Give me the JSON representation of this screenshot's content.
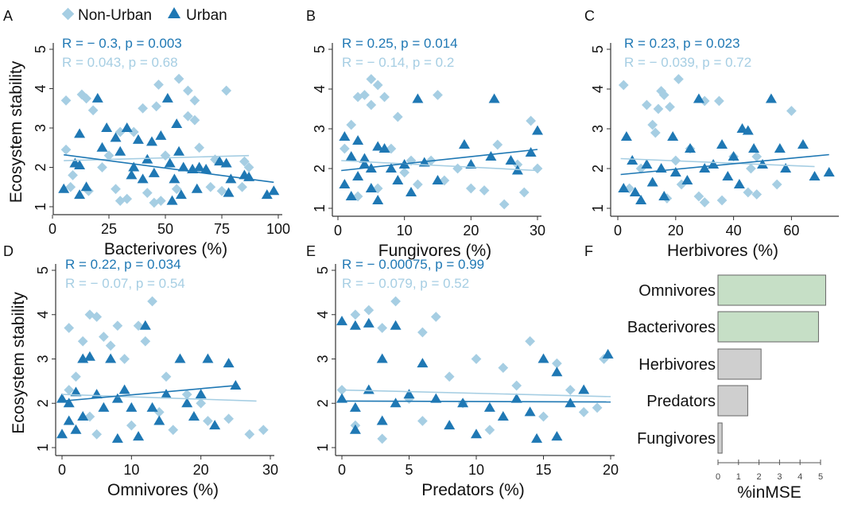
{
  "colors": {
    "urban": "#1f78b4",
    "non_urban": "#a6cee3",
    "bar_top": "#c6dfc6",
    "bar_other": "#cfcfcf"
  },
  "legend": {
    "non_urban": "Non-Urban",
    "urban": "Urban",
    "non_urban_icon": "diamond",
    "urban_icon": "triangle",
    "placement": "top"
  },
  "chart_data": [
    {
      "panel": "A",
      "type": "scatter",
      "xlabel": "Bacterivores (%)",
      "ylabel": "Ecosystem stability",
      "xlim": [
        0,
        100
      ],
      "ylim": [
        1,
        5
      ],
      "xticks": [
        "0",
        "25",
        "50",
        "75",
        "100"
      ],
      "yticks": [
        "1",
        "2",
        "3",
        "4",
        "5"
      ],
      "stats": {
        "urban": "R = − 0.3, p = 0.003",
        "non_urban": "R = 0.043, p = 0.68"
      },
      "fit": {
        "urban": [
          [
            5,
            2.32
          ],
          [
            98,
            1.62
          ]
        ],
        "non_urban": [
          [
            5,
            2.17
          ],
          [
            87,
            2.3
          ]
        ]
      },
      "non_urban": [
        [
          6,
          3.7
        ],
        [
          13,
          3.85
        ],
        [
          15,
          3.75
        ],
        [
          18,
          3.45
        ],
        [
          47,
          4.1
        ],
        [
          56,
          4.25
        ],
        [
          60,
          3.95
        ],
        [
          63,
          3.7
        ],
        [
          77,
          3.95
        ],
        [
          40,
          3.5
        ],
        [
          46,
          3.55
        ],
        [
          60,
          3.3
        ],
        [
          63,
          3.2
        ],
        [
          30,
          2.9
        ],
        [
          36,
          2.9
        ],
        [
          6,
          2.45
        ],
        [
          9,
          1.8
        ],
        [
          22,
          2.0
        ],
        [
          28,
          1.45
        ],
        [
          30,
          1.15
        ],
        [
          45,
          1.1
        ],
        [
          48,
          1.15
        ],
        [
          33,
          1.2
        ],
        [
          55,
          1.45
        ],
        [
          70,
          1.5
        ],
        [
          75,
          1.4
        ],
        [
          84,
          1.5
        ],
        [
          85,
          2.15
        ],
        [
          87,
          2.0
        ],
        [
          65,
          2.5
        ],
        [
          72,
          2.2
        ],
        [
          8,
          1.5
        ],
        [
          16,
          1.4
        ],
        [
          42,
          1.35
        ],
        [
          25,
          2.3
        ],
        [
          50,
          2.3
        ]
      ],
      "urban": [
        [
          20,
          3.75
        ],
        [
          51,
          3.75
        ],
        [
          55,
          3.1
        ],
        [
          12,
          2.85
        ],
        [
          24,
          3.0
        ],
        [
          33,
          3.0
        ],
        [
          38,
          2.7
        ],
        [
          28,
          2.75
        ],
        [
          44,
          2.65
        ],
        [
          48,
          2.8
        ],
        [
          56,
          2.4
        ],
        [
          22,
          2.5
        ],
        [
          30,
          2.4
        ],
        [
          36,
          2.0
        ],
        [
          40,
          1.7
        ],
        [
          45,
          1.85
        ],
        [
          52,
          2.1
        ],
        [
          54,
          1.7
        ],
        [
          58,
          2.0
        ],
        [
          62,
          1.95
        ],
        [
          65,
          2.0
        ],
        [
          68,
          1.95
        ],
        [
          74,
          2.15
        ],
        [
          77,
          2.1
        ],
        [
          79,
          1.7
        ],
        [
          85,
          1.8
        ],
        [
          87,
          1.75
        ],
        [
          78,
          1.35
        ],
        [
          95,
          1.3
        ],
        [
          98,
          1.4
        ],
        [
          64,
          1.45
        ],
        [
          53,
          1.15
        ],
        [
          57,
          1.3
        ],
        [
          12,
          1.3
        ],
        [
          15,
          1.5
        ],
        [
          5,
          1.45
        ],
        [
          10,
          2.1
        ],
        [
          12,
          2.05
        ],
        [
          42,
          2.2
        ],
        [
          35,
          1.8
        ]
      ]
    },
    {
      "panel": "B",
      "type": "scatter",
      "xlabel": "Fungivores (%)",
      "ylabel": "",
      "xlim": [
        0,
        30
      ],
      "ylim": [
        1,
        5
      ],
      "xticks": [
        "0",
        "10",
        "20",
        "30"
      ],
      "yticks": [
        "1",
        "2",
        "3",
        "4",
        "5"
      ],
      "stats": {
        "urban": "R = 0.25, p = 0.014",
        "non_urban": "R = − 0.14, p = 0.2"
      },
      "fit": {
        "urban": [
          [
            0.5,
            1.95
          ],
          [
            30,
            2.48
          ]
        ],
        "non_urban": [
          [
            0.5,
            2.2
          ],
          [
            30,
            1.95
          ]
        ]
      },
      "non_urban": [
        [
          5,
          4.25
        ],
        [
          6,
          4.1
        ],
        [
          4,
          3.85
        ],
        [
          3,
          3.8
        ],
        [
          7,
          3.8
        ],
        [
          5,
          3.6
        ],
        [
          15,
          3.85
        ],
        [
          9,
          3.3
        ],
        [
          2,
          3.1
        ],
        [
          29,
          3.2
        ],
        [
          24,
          2.6
        ],
        [
          1,
          2.5
        ],
        [
          8,
          2.5
        ],
        [
          11,
          2.2
        ],
        [
          14,
          2.2
        ],
        [
          18,
          2.0
        ],
        [
          20,
          1.5
        ],
        [
          25,
          1.1
        ],
        [
          22,
          1.45
        ],
        [
          28,
          1.4
        ],
        [
          30,
          2.0
        ],
        [
          3,
          1.3
        ],
        [
          6,
          1.5
        ],
        [
          12,
          1.6
        ],
        [
          16,
          1.7
        ],
        [
          27,
          2.1
        ],
        [
          10,
          1.9
        ]
      ],
      "urban": [
        [
          12,
          3.75
        ],
        [
          23.5,
          3.75
        ],
        [
          30,
          2.95
        ],
        [
          1,
          2.8
        ],
        [
          3,
          2.7
        ],
        [
          6,
          2.55
        ],
        [
          7,
          2.5
        ],
        [
          19,
          2.6
        ],
        [
          2,
          2.3
        ],
        [
          4,
          2.1
        ],
        [
          5,
          2.0
        ],
        [
          8,
          2.0
        ],
        [
          10,
          2.1
        ],
        [
          13,
          2.15
        ],
        [
          20,
          2.1
        ],
        [
          27,
          1.95
        ],
        [
          1,
          1.6
        ],
        [
          2,
          1.3
        ],
        [
          3,
          1.8
        ],
        [
          5,
          1.5
        ],
        [
          6,
          1.2
        ],
        [
          9,
          1.7
        ],
        [
          11,
          1.4
        ],
        [
          15,
          1.7
        ],
        [
          23,
          2.3
        ],
        [
          29,
          2.4
        ],
        [
          26,
          2.2
        ],
        [
          4,
          2.25
        ]
      ]
    },
    {
      "panel": "C",
      "type": "scatter",
      "xlabel": "Herbivores (%)",
      "ylabel": "",
      "xlim": [
        0,
        75
      ],
      "ylim": [
        1,
        5
      ],
      "xticks": [
        "0",
        "20",
        "40",
        "60"
      ],
      "yticks": [
        "1",
        "2",
        "3",
        "4",
        "5"
      ],
      "stats": {
        "urban": "R = 0.23, p = 0.023",
        "non_urban": "R = − 0.039, p = 0.72"
      },
      "fit": {
        "urban": [
          [
            1,
            1.85
          ],
          [
            73,
            2.35
          ]
        ],
        "non_urban": [
          [
            1,
            2.25
          ],
          [
            68,
            2.05
          ]
        ]
      },
      "non_urban": [
        [
          2,
          4.1
        ],
        [
          21,
          4.25
        ],
        [
          15,
          3.95
        ],
        [
          16,
          3.85
        ],
        [
          10,
          3.6
        ],
        [
          14,
          3.5
        ],
        [
          18,
          3.55
        ],
        [
          35,
          3.7
        ],
        [
          30,
          3.7
        ],
        [
          12,
          3.1
        ],
        [
          13,
          2.9
        ],
        [
          60,
          3.45
        ],
        [
          25,
          2.5
        ],
        [
          40,
          2.3
        ],
        [
          48,
          2.3
        ],
        [
          8,
          2.0
        ],
        [
          20,
          2.2
        ],
        [
          22,
          1.6
        ],
        [
          28,
          1.3
        ],
        [
          30,
          1.15
        ],
        [
          36,
          1.2
        ],
        [
          45,
          1.4
        ],
        [
          48,
          1.35
        ],
        [
          55,
          1.6
        ],
        [
          4,
          1.5
        ],
        [
          17,
          1.25
        ],
        [
          46,
          2.0
        ]
      ],
      "urban": [
        [
          28,
          3.75
        ],
        [
          53,
          3.75
        ],
        [
          43,
          3.0
        ],
        [
          45,
          2.95
        ],
        [
          3,
          2.8
        ],
        [
          19,
          2.8
        ],
        [
          25,
          2.5
        ],
        [
          36,
          2.6
        ],
        [
          40,
          2.3
        ],
        [
          47,
          2.5
        ],
        [
          64,
          2.6
        ],
        [
          56,
          2.5
        ],
        [
          5,
          2.2
        ],
        [
          10,
          2.1
        ],
        [
          15,
          2.0
        ],
        [
          20,
          1.9
        ],
        [
          30,
          2.0
        ],
        [
          33,
          2.1
        ],
        [
          38,
          1.8
        ],
        [
          50,
          2.1
        ],
        [
          58,
          2.0
        ],
        [
          68,
          1.8
        ],
        [
          73,
          1.9
        ],
        [
          2,
          1.5
        ],
        [
          6,
          1.4
        ],
        [
          8,
          1.2
        ],
        [
          12,
          1.65
        ],
        [
          16,
          1.3
        ],
        [
          24,
          1.7
        ],
        [
          42,
          1.6
        ]
      ]
    },
    {
      "panel": "D",
      "type": "scatter",
      "xlabel": "Omnivores (%)",
      "ylabel": "Ecosystem stability",
      "xlim": [
        0,
        30
      ],
      "ylim": [
        1,
        5
      ],
      "xticks": [
        "0",
        "10",
        "20",
        "30"
      ],
      "yticks": [
        "1",
        "2",
        "3",
        "4",
        "5"
      ],
      "stats": {
        "urban": "R = 0.22, p = 0.034",
        "non_urban": "R = − 0.07, p = 0.54"
      },
      "fit": {
        "urban": [
          [
            0,
            2.05
          ],
          [
            25,
            2.4
          ]
        ],
        "non_urban": [
          [
            0,
            2.2
          ],
          [
            28,
            2.05
          ]
        ]
      },
      "non_urban": [
        [
          4,
          4.0
        ],
        [
          5,
          3.95
        ],
        [
          13,
          4.3
        ],
        [
          8,
          3.75
        ],
        [
          11,
          3.75
        ],
        [
          6,
          3.5
        ],
        [
          7,
          3.3
        ],
        [
          1,
          3.7
        ],
        [
          3,
          3.4
        ],
        [
          12,
          3.4
        ],
        [
          9,
          3.0
        ],
        [
          2,
          2.6
        ],
        [
          15,
          2.6
        ],
        [
          18,
          2.2
        ],
        [
          21,
          1.6
        ],
        [
          24,
          1.65
        ],
        [
          27,
          1.3
        ],
        [
          29,
          1.4
        ],
        [
          20,
          2.0
        ],
        [
          1,
          2.3
        ],
        [
          4,
          1.7
        ],
        [
          5,
          1.3
        ],
        [
          10,
          1.5
        ],
        [
          14,
          1.8
        ],
        [
          16,
          1.4
        ]
      ],
      "urban": [
        [
          4,
          3.05
        ],
        [
          3,
          3.0
        ],
        [
          7,
          3.0
        ],
        [
          12,
          3.75
        ],
        [
          17,
          3.0
        ],
        [
          21,
          3.0
        ],
        [
          24,
          2.9
        ],
        [
          0,
          2.1
        ],
        [
          1,
          2.0
        ],
        [
          2,
          2.25
        ],
        [
          5,
          2.2
        ],
        [
          6,
          1.9
        ],
        [
          8,
          2.1
        ],
        [
          9,
          2.3
        ],
        [
          10,
          1.9
        ],
        [
          13,
          1.9
        ],
        [
          15,
          2.2
        ],
        [
          18,
          2.0
        ],
        [
          20,
          2.2
        ],
        [
          25,
          2.4
        ],
        [
          0,
          1.3
        ],
        [
          1,
          1.6
        ],
        [
          2,
          1.4
        ],
        [
          3,
          1.7
        ],
        [
          8,
          1.2
        ],
        [
          11,
          1.25
        ],
        [
          14,
          1.6
        ],
        [
          19,
          1.7
        ],
        [
          22,
          1.5
        ]
      ]
    },
    {
      "panel": "E",
      "type": "scatter",
      "xlabel": "Predators (%)",
      "ylabel": "",
      "xlim": [
        0,
        20
      ],
      "ylim": [
        1,
        5
      ],
      "xticks": [
        "0",
        "5",
        "10",
        "15",
        "20"
      ],
      "yticks": [
        "1",
        "2",
        "3",
        "4",
        "5"
      ],
      "stats": {
        "urban": "R = − 0.00075, p = 0.99",
        "non_urban": "R = − 0.079, p = 0.52"
      },
      "fit": {
        "urban": [
          [
            0,
            2.05
          ],
          [
            20,
            2.03
          ]
        ],
        "non_urban": [
          [
            0,
            2.3
          ],
          [
            20,
            2.15
          ]
        ]
      },
      "non_urban": [
        [
          4,
          4.3
        ],
        [
          1,
          4.0
        ],
        [
          2,
          4.1
        ],
        [
          7,
          3.95
        ],
        [
          3,
          3.7
        ],
        [
          6,
          3.6
        ],
        [
          14,
          3.4
        ],
        [
          19.5,
          3.0
        ],
        [
          10,
          3.0
        ],
        [
          8,
          2.6
        ],
        [
          12,
          2.8
        ],
        [
          16,
          2.9
        ],
        [
          0,
          2.3
        ],
        [
          5,
          2.1
        ],
        [
          9,
          2.0
        ],
        [
          13,
          2.4
        ],
        [
          17,
          2.3
        ],
        [
          18,
          1.8
        ],
        [
          1,
          1.5
        ],
        [
          3,
          1.2
        ],
        [
          6,
          1.6
        ],
        [
          11,
          1.4
        ],
        [
          15,
          1.7
        ],
        [
          19,
          1.9
        ]
      ],
      "urban": [
        [
          1,
          3.75
        ],
        [
          2,
          3.8
        ],
        [
          4,
          3.75
        ],
        [
          0,
          3.85
        ],
        [
          3,
          3.0
        ],
        [
          6,
          2.9
        ],
        [
          15,
          3.0
        ],
        [
          16,
          2.7
        ],
        [
          19.8,
          3.1
        ],
        [
          0,
          2.1
        ],
        [
          1,
          1.9
        ],
        [
          2,
          2.3
        ],
        [
          4,
          2.0
        ],
        [
          5,
          2.2
        ],
        [
          7,
          2.1
        ],
        [
          9,
          2.0
        ],
        [
          11,
          1.9
        ],
        [
          13,
          2.1
        ],
        [
          14,
          1.8
        ],
        [
          17,
          2.0
        ],
        [
          18,
          2.3
        ],
        [
          1,
          1.4
        ],
        [
          3,
          1.6
        ],
        [
          8,
          1.5
        ],
        [
          10,
          1.3
        ],
        [
          14.5,
          1.2
        ],
        [
          16,
          1.25
        ],
        [
          12,
          1.7
        ]
      ]
    },
    {
      "panel": "F",
      "type": "bar",
      "orientation": "horizontal",
      "xlabel": "%inMSE",
      "xlim": [
        0,
        5.3
      ],
      "xticks": [
        "0",
        "1",
        "2",
        "3",
        "4",
        "5"
      ],
      "categories": [
        "Omnivores",
        "Bacterivores",
        "Herbivores",
        "Predators",
        "Fungivores"
      ],
      "values": [
        5.25,
        4.9,
        2.1,
        1.45,
        0.2
      ],
      "highlighted": [
        true,
        true,
        false,
        false,
        false
      ]
    }
  ]
}
